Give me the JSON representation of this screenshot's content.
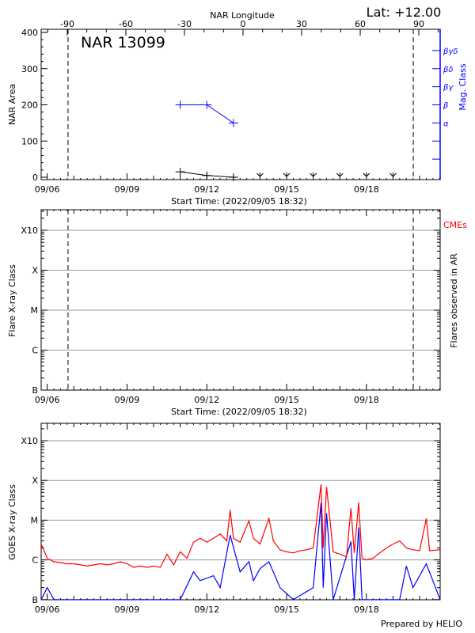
{
  "footer": "Prepared by HELIO",
  "chart_data": [
    {
      "type": "line",
      "title": "NAR 13099",
      "corner_label": "Lat: +12.00",
      "xlabel": "Start Time: (2022/09/05 18:32)",
      "x_range": [
        "2022-09-05 18:32",
        "2022-09-20 18:32"
      ],
      "x_tick_labels": [
        "09/06",
        "09/09",
        "09/12",
        "09/15",
        "09/18"
      ],
      "top_axis_label": "NAR Longitude",
      "top_axis_ticks": [
        "-90",
        "-60",
        "-30",
        "0",
        "30",
        "60",
        "90"
      ],
      "limb_markers_longitude": [
        -90,
        90
      ],
      "ylabel": "NAR Area",
      "ylim": [
        0,
        400
      ],
      "y_ticks": [
        "0",
        "100",
        "200",
        "300",
        "400"
      ],
      "right_axis_label": "Mag. Class",
      "right_axis_color": "#0000ff",
      "mag_class_levels": [
        {
          "label": "α",
          "area_level": 150
        },
        {
          "label": "β",
          "area_level": 200
        },
        {
          "label": "βγ",
          "area_level": 250
        },
        {
          "label": "βδ",
          "area_level": 300
        },
        {
          "label": "βγδ",
          "area_level": 350
        }
      ],
      "series": [
        {
          "color": "#000000",
          "points": [
            [
              "2022-09-11 00:00",
              15
            ],
            [
              "2022-09-12 00:00",
              5
            ],
            [
              "2022-09-13 00:00",
              0
            ]
          ]
        },
        {
          "color": "#0000ff",
          "points": [
            [
              "2022-09-11 00:00",
              "β"
            ],
            [
              "2022-09-12 00:00",
              "β"
            ],
            [
              "2022-09-13 00:00",
              "α"
            ]
          ]
        }
      ],
      "zero_markers": [
        "2022-09-14 00:00",
        "2022-09-15 00:00",
        "2022-09-16 00:00",
        "2022-09-17 00:00",
        "2022-09-18 00:00",
        "2022-09-19 00:00"
      ]
    },
    {
      "type": "scatter",
      "xlabel": "Start Time: (2022/09/05 18:32)",
      "x_range": [
        "2022-09-05 18:32",
        "2022-09-20 18:32"
      ],
      "x_tick_labels": [
        "09/06",
        "09/09",
        "09/12",
        "09/15",
        "09/18"
      ],
      "ylabel": "Flare X-ray Class",
      "y_ticks": [
        "B",
        "C",
        "M",
        "X",
        "X10"
      ],
      "right_axis_label": "Flares observed in AR",
      "cme_label": "CMEs",
      "cme_color": "#ff0000",
      "grid": true,
      "limb_markers_longitude": [
        -90,
        90
      ],
      "flares": []
    },
    {
      "type": "line",
      "x_range": [
        "2022-09-05 18:32",
        "2022-09-20 18:32"
      ],
      "x_tick_labels": [
        "09/06",
        "09/09",
        "09/12",
        "09/15",
        "09/18"
      ],
      "ylabel": "GOES X-ray Class",
      "y_ticks": [
        "B",
        "C",
        "M",
        "X",
        "X10"
      ],
      "y_scale": "log",
      "ylim_flux": [
        1e-07,
        0.00275
      ],
      "grid": true,
      "series": [
        {
          "color": "#ff0000",
          "points": [
            [
              "2022-09-05 18:32",
              2.5e-06
            ],
            [
              "2022-09-06 00:00",
              1.1e-06
            ],
            [
              "2022-09-06 06:00",
              9e-07
            ],
            [
              "2022-09-06 12:00",
              8.5e-07
            ],
            [
              "2022-09-06 18:00",
              8e-07
            ],
            [
              "2022-09-07 00:00",
              8e-07
            ],
            [
              "2022-09-07 06:00",
              7.5e-07
            ],
            [
              "2022-09-07 12:00",
              7e-07
            ],
            [
              "2022-09-07 18:00",
              7.5e-07
            ],
            [
              "2022-09-08 00:00",
              8e-07
            ],
            [
              "2022-09-08 06:00",
              7.5e-07
            ],
            [
              "2022-09-08 12:00",
              8e-07
            ],
            [
              "2022-09-08 18:00",
              9e-07
            ],
            [
              "2022-09-09 00:00",
              8e-07
            ],
            [
              "2022-09-09 06:00",
              6.5e-07
            ],
            [
              "2022-09-09 12:00",
              7e-07
            ],
            [
              "2022-09-09 18:00",
              6.5e-07
            ],
            [
              "2022-09-10 00:00",
              7e-07
            ],
            [
              "2022-09-10 06:00",
              6.5e-07
            ],
            [
              "2022-09-10 12:00",
              1.4e-06
            ],
            [
              "2022-09-10 18:00",
              7.5e-07
            ],
            [
              "2022-09-11 00:00",
              1.6e-06
            ],
            [
              "2022-09-11 06:00",
              1.1e-06
            ],
            [
              "2022-09-11 12:00",
              2.8e-06
            ],
            [
              "2022-09-11 18:00",
              3.5e-06
            ],
            [
              "2022-09-12 00:00",
              2.8e-06
            ],
            [
              "2022-09-12 06:00",
              3.5e-06
            ],
            [
              "2022-09-12 12:00",
              4.5e-06
            ],
            [
              "2022-09-12 18:00",
              3e-06
            ],
            [
              "2022-09-12 21:00",
              1.8e-05
            ],
            [
              "2022-09-13 00:00",
              3.5e-06
            ],
            [
              "2022-09-13 06:00",
              2.8e-06
            ],
            [
              "2022-09-13 14:00",
              9.7e-06
            ],
            [
              "2022-09-13 18:00",
              3.5e-06
            ],
            [
              "2022-09-14 00:00",
              2.5e-06
            ],
            [
              "2022-09-14 08:00",
              1.1e-05
            ],
            [
              "2022-09-14 12:00",
              3e-06
            ],
            [
              "2022-09-14 18:00",
              1.8e-06
            ],
            [
              "2022-09-15 00:00",
              1.6e-06
            ],
            [
              "2022-09-15 06:00",
              1.5e-06
            ],
            [
              "2022-09-15 12:00",
              1.7e-06
            ],
            [
              "2022-09-15 18:00",
              1.8e-06
            ],
            [
              "2022-09-16 00:00",
              2e-06
            ],
            [
              "2022-09-16 07:00",
              8e-05
            ],
            [
              "2022-09-16 09:00",
              2e-06
            ],
            [
              "2022-09-16 12:00",
              6.9e-05
            ],
            [
              "2022-09-16 18:00",
              1.6e-06
            ],
            [
              "2022-09-17 00:00",
              1.4e-06
            ],
            [
              "2022-09-17 06:00",
              1.2e-06
            ],
            [
              "2022-09-17 10:00",
              2e-05
            ],
            [
              "2022-09-17 13:00",
              1.5e-06
            ],
            [
              "2022-09-17 17:00",
              2.8e-05
            ],
            [
              "2022-09-17 20:00",
              1.1e-06
            ],
            [
              "2022-09-18 00:00",
              1e-06
            ],
            [
              "2022-09-18 06:00",
              1.1e-06
            ],
            [
              "2022-09-18 12:00",
              1.5e-06
            ],
            [
              "2022-09-18 18:00",
              2e-06
            ],
            [
              "2022-09-19 00:00",
              2.5e-06
            ],
            [
              "2022-09-19 06:00",
              3e-06
            ],
            [
              "2022-09-19 12:00",
              2e-06
            ],
            [
              "2022-09-19 18:00",
              1.8e-06
            ],
            [
              "2022-09-20 00:00",
              1.7e-06
            ],
            [
              "2022-09-20 06:00",
              1.1e-05
            ],
            [
              "2022-09-20 09:00",
              1.7e-06
            ],
            [
              "2022-09-20 18:00",
              1.8e-06
            ]
          ]
        },
        {
          "color": "#0000ff",
          "points": [
            [
              "2022-09-05 18:32",
              1e-07
            ],
            [
              "2022-09-06 00:00",
              2e-07
            ],
            [
              "2022-09-06 06:00",
              1e-07
            ],
            [
              "2022-09-11 00:00",
              1e-07
            ],
            [
              "2022-09-11 12:00",
              5e-07
            ],
            [
              "2022-09-11 18:00",
              3e-07
            ],
            [
              "2022-09-12 06:00",
              4e-07
            ],
            [
              "2022-09-12 12:00",
              2e-07
            ],
            [
              "2022-09-12 21:00",
              4.2e-06
            ],
            [
              "2022-09-13 06:00",
              5e-07
            ],
            [
              "2022-09-13 14:00",
              9e-07
            ],
            [
              "2022-09-13 18:00",
              3e-07
            ],
            [
              "2022-09-14 00:00",
              6e-07
            ],
            [
              "2022-09-14 08:00",
              9e-07
            ],
            [
              "2022-09-14 18:00",
              2e-07
            ],
            [
              "2022-09-15 06:00",
              1e-07
            ],
            [
              "2022-09-16 00:00",
              2e-07
            ],
            [
              "2022-09-16 07:00",
              2.7e-05
            ],
            [
              "2022-09-16 09:00",
              2e-07
            ],
            [
              "2022-09-16 12:00",
              1.5e-05
            ],
            [
              "2022-09-16 18:00",
              1e-07
            ],
            [
              "2022-09-17 10:00",
              2.9e-06
            ],
            [
              "2022-09-17 13:00",
              1e-07
            ],
            [
              "2022-09-17 17:00",
              6.6e-06
            ],
            [
              "2022-09-17 20:00",
              1e-07
            ],
            [
              "2022-09-19 06:00",
              1e-07
            ],
            [
              "2022-09-19 12:00",
              7e-07
            ],
            [
              "2022-09-19 18:00",
              2e-07
            ],
            [
              "2022-09-20 06:00",
              8e-07
            ],
            [
              "2022-09-20 18:32",
              1e-07
            ]
          ]
        }
      ]
    }
  ]
}
